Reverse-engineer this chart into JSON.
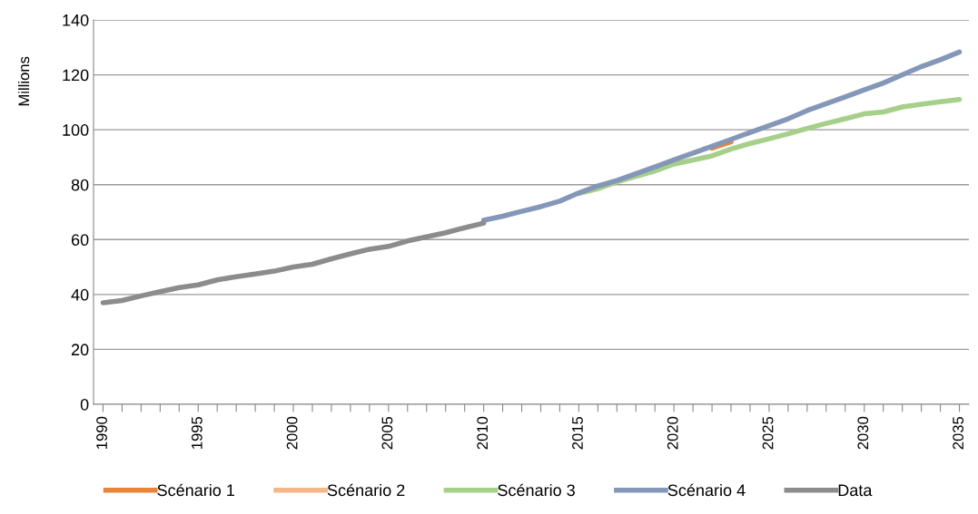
{
  "chart_data": {
    "type": "line",
    "ylabel": "Millions",
    "categories": [
      "1990",
      null,
      null,
      null,
      null,
      "1995",
      null,
      null,
      null,
      null,
      "2000",
      null,
      null,
      null,
      null,
      "2005",
      null,
      null,
      null,
      null,
      "2010",
      null,
      null,
      null,
      null,
      "2015",
      null,
      null,
      null,
      null,
      "2020",
      null,
      null,
      null,
      null,
      "2025",
      null,
      null,
      null,
      null,
      "2030",
      null,
      null,
      null,
      null,
      "2035"
    ],
    "ylim": [
      0,
      140
    ],
    "yticks": [
      0,
      20,
      40,
      60,
      80,
      100,
      120,
      140
    ],
    "grid": "y",
    "legend": "bottom",
    "marker": "none",
    "line_style": "solid",
    "series": [
      {
        "name": "Scénario 1",
        "color": "#e8843a",
        "values": [
          null,
          null,
          null,
          null,
          null,
          null,
          null,
          null,
          null,
          null,
          null,
          null,
          null,
          null,
          null,
          null,
          null,
          null,
          null,
          null,
          null,
          null,
          null,
          null,
          null,
          null,
          null,
          null,
          null,
          null,
          null,
          null,
          93.3,
          95.6,
          null,
          null,
          null,
          null,
          null,
          null,
          null,
          null,
          null,
          null,
          null,
          null
        ]
      },
      {
        "name": "Scénario 2",
        "color": "#f5b78a",
        "values": [
          null,
          null,
          null,
          null,
          null,
          null,
          null,
          null,
          null,
          null,
          null,
          null,
          null,
          null,
          null,
          null,
          null,
          null,
          null,
          null,
          null,
          null,
          null,
          null,
          null,
          null,
          null,
          null,
          null,
          null,
          null,
          null,
          null,
          null,
          null,
          null,
          null,
          null,
          null,
          null,
          null,
          null,
          null,
          null,
          null,
          null
        ]
      },
      {
        "name": "Scénario 3",
        "color": "#a6cf8a",
        "values": [
          null,
          null,
          null,
          null,
          null,
          null,
          null,
          null,
          null,
          null,
          null,
          null,
          null,
          null,
          null,
          null,
          null,
          null,
          null,
          null,
          null,
          null,
          null,
          null,
          null,
          76.8,
          78.5,
          81,
          83,
          85,
          87.5,
          89,
          90.5,
          93,
          95,
          96.7,
          98.5,
          100.5,
          102.3,
          104,
          105.8,
          106.5,
          108.3,
          109.3,
          110.2,
          111
        ]
      },
      {
        "name": "Scénario 4",
        "color": "#8497b8",
        "values": [
          null,
          null,
          null,
          null,
          null,
          null,
          null,
          null,
          null,
          null,
          null,
          null,
          null,
          null,
          null,
          null,
          null,
          null,
          null,
          null,
          67,
          68.5,
          70.3,
          72,
          74,
          77,
          79.5,
          81.5,
          84,
          86.5,
          89,
          91.5,
          94,
          96.5,
          99,
          101.5,
          104,
          107,
          109.5,
          112,
          114.5,
          117,
          120,
          123,
          125.5,
          128.3
        ]
      },
      {
        "name": "Data",
        "color": "#8c8c8c",
        "values": [
          37,
          37.8,
          39.5,
          41,
          42.5,
          43.5,
          45.3,
          46.5,
          47.5,
          48.5,
          50,
          51,
          53,
          54.8,
          56.5,
          57.5,
          59.5,
          61,
          62.5,
          64.3,
          66,
          null,
          null,
          null,
          null,
          null,
          null,
          null,
          null,
          null,
          null,
          null,
          null,
          null,
          null,
          null,
          null,
          null,
          null,
          null,
          null,
          null,
          null,
          null,
          null,
          null
        ]
      }
    ]
  }
}
